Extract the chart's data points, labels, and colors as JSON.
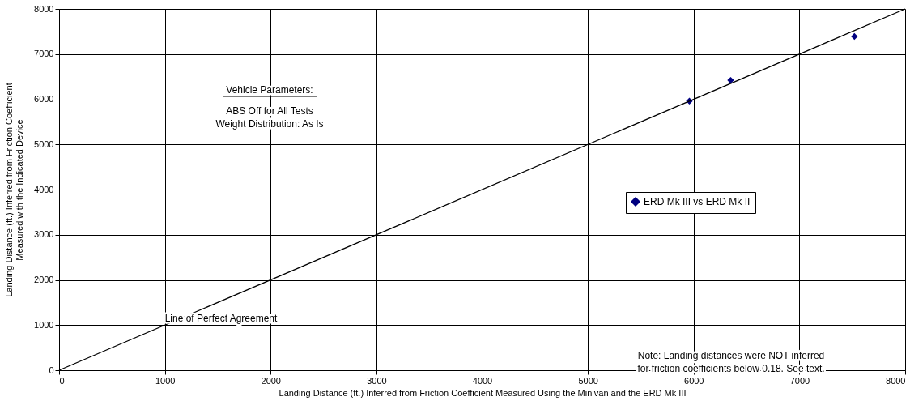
{
  "chart_data": {
    "type": "scatter",
    "xlabel": "Landing Distance (ft.) Inferred from Friction Coefficient Measured Using the Minivan and the ERD Mk III",
    "ylabel": "Landing Distance (ft.) Inferred from Friction Coefficient\nMeasured with the Indicated Device",
    "xlim": [
      0,
      8000
    ],
    "xticks": [
      0,
      1000,
      2000,
      3000,
      4000,
      5000,
      6000,
      7000,
      8000
    ],
    "ylim": [
      0,
      8000
    ],
    "yticks": [
      0,
      1000,
      2000,
      3000,
      4000,
      5000,
      6000,
      7000,
      8000
    ],
    "grid": true,
    "legend": "right",
    "marker": "diamond",
    "series": [
      {
        "name": "ERD Mk III vs ERD Mk II",
        "color": "#000080",
        "x": [
          5960,
          6350,
          7520
        ],
        "values": [
          5960,
          6420,
          7390
        ]
      },
      {
        "type": "line",
        "color": "#000000",
        "x": [
          0,
          8000
        ],
        "values": [
          0,
          8000
        ],
        "line_style": "solid",
        "marker": "none"
      }
    ],
    "annotations": [
      "Line of Perfect Agreement",
      "Vehicle Parameters:",
      "ABS Off  for All Tests",
      "Weight Distribution: As Is",
      "Note: Landing distances were NOT inferred\nfor friction coefficients below 0.18. See text."
    ]
  }
}
